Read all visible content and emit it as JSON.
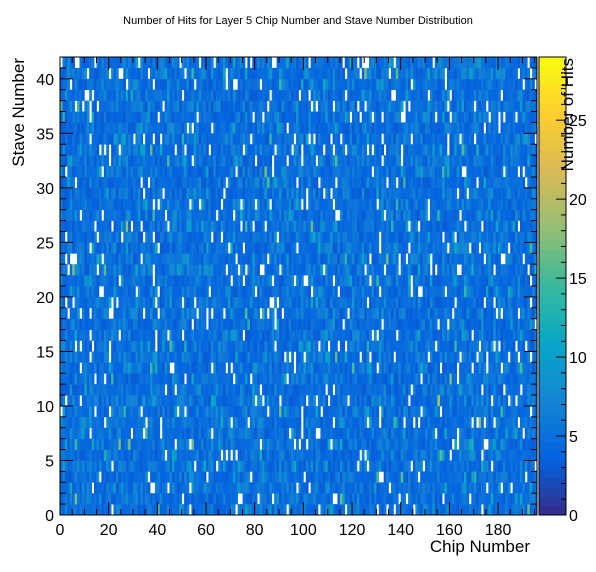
{
  "chart_data": {
    "type": "heatmap",
    "title": "Number of Hits for Layer 5 Chip Number and Stave Number Distribution",
    "xlabel": "Chip Number",
    "ylabel": "Stave Number",
    "zlabel": "Number of Hits",
    "xlim": [
      0,
      196
    ],
    "ylim": [
      0,
      42
    ],
    "zlim": [
      0,
      29
    ],
    "x_bins": 196,
    "y_bins": 42,
    "xticks": [
      0,
      20,
      40,
      60,
      80,
      100,
      120,
      140,
      160,
      180
    ],
    "yticks": [
      0,
      5,
      10,
      15,
      20,
      25,
      30,
      35,
      40
    ],
    "zticks": [
      0,
      5,
      10,
      15,
      20,
      25
    ],
    "colormap": "parula",
    "typical_value_range": [
      3,
      8
    ],
    "approx_mean_hits_per_bin": 5,
    "empty_bins_shown_white": true,
    "grid": false,
    "legend": "colorbar-right",
    "colorbar_colors": [
      "#352a87",
      "#0363e1",
      "#1485d4",
      "#06a7c6",
      "#38b99e",
      "#92bf73",
      "#d9ba56",
      "#fcce2e",
      "#f9fb0e"
    ]
  }
}
